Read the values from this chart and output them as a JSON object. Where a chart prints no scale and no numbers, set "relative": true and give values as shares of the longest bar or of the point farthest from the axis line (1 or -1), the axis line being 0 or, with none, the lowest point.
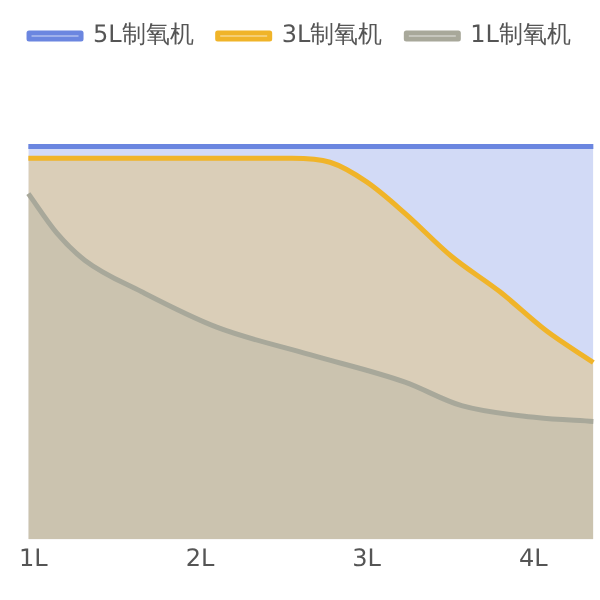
{
  "chart_data": {
    "type": "area",
    "relative": true,
    "xlim": [
      0.8,
      4.4
    ],
    "xticks": [
      {
        "value": 1,
        "label": "1L"
      },
      {
        "value": 2,
        "label": "2L"
      },
      {
        "value": 3,
        "label": "3L"
      },
      {
        "value": 4,
        "label": "4L"
      }
    ],
    "legend": "top",
    "marker": "none",
    "grid": false,
    "series": [
      {
        "name": "5L制氧机",
        "color": "#6b86e0",
        "x": [
          0.97,
          4.36
        ],
        "values": [
          1,
          1
        ]
      },
      {
        "name": "3L制氧机",
        "color": "#f0b429",
        "x": [
          0.97,
          1.53,
          2.1,
          2.55,
          2.78,
          3.0,
          3.23,
          3.51,
          3.8,
          4.08,
          4.36
        ],
        "values": [
          0.97,
          0.97,
          0.97,
          0.97,
          0.96,
          0.91,
          0.83,
          0.72,
          0.63,
          0.53,
          0.45
        ]
      },
      {
        "name": "1L制氧机",
        "color": "#a8a89a",
        "x": [
          0.97,
          1.14,
          1.31,
          1.65,
          2.1,
          2.66,
          3.23,
          3.57,
          4.02,
          4.36
        ],
        "values": [
          0.88,
          0.78,
          0.71,
          0.63,
          0.54,
          0.47,
          0.4,
          0.34,
          0.31,
          0.3
        ]
      }
    ]
  }
}
